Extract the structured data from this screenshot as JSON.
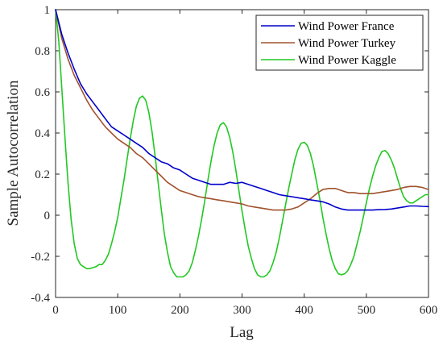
{
  "chart_data": {
    "type": "line",
    "title": "",
    "xlabel": "Lag",
    "ylabel": "Sample Autocorrelation",
    "xlim": [
      0,
      600
    ],
    "ylim": [
      -0.4,
      1
    ],
    "xticks": [
      0,
      100,
      200,
      300,
      400,
      500,
      600
    ],
    "yticks": [
      -0.4,
      -0.2,
      0,
      0.2,
      0.4,
      0.6,
      0.8,
      1
    ],
    "xtick_labels": [
      "0",
      "100",
      "200",
      "300",
      "400",
      "500",
      "600"
    ],
    "ytick_labels": [
      "-0.4",
      "-0.2",
      "0",
      "0.2",
      "0.4",
      "0.6",
      "0.8",
      "1"
    ],
    "grid": false,
    "legend_position": "top-right",
    "series": [
      {
        "name": "Wind Power France",
        "color": "#0000cc",
        "x": [
          0,
          10,
          20,
          30,
          40,
          50,
          60,
          70,
          80,
          90,
          100,
          110,
          120,
          130,
          140,
          150,
          160,
          170,
          180,
          190,
          200,
          210,
          220,
          230,
          240,
          250,
          260,
          270,
          280,
          290,
          300,
          310,
          320,
          330,
          340,
          350,
          360,
          370,
          380,
          390,
          400,
          410,
          420,
          430,
          440,
          450,
          460,
          470,
          480,
          490,
          500,
          510,
          520,
          530,
          540,
          550,
          560,
          570,
          580,
          590,
          600
        ],
        "values": [
          1.0,
          0.88,
          0.79,
          0.71,
          0.64,
          0.59,
          0.55,
          0.51,
          0.47,
          0.43,
          0.41,
          0.39,
          0.37,
          0.35,
          0.33,
          0.3,
          0.28,
          0.26,
          0.25,
          0.23,
          0.22,
          0.2,
          0.18,
          0.17,
          0.16,
          0.15,
          0.15,
          0.15,
          0.16,
          0.155,
          0.16,
          0.15,
          0.14,
          0.13,
          0.12,
          0.11,
          0.1,
          0.095,
          0.09,
          0.085,
          0.08,
          0.075,
          0.07,
          0.065,
          0.055,
          0.04,
          0.03,
          0.025,
          0.025,
          0.025,
          0.025,
          0.025,
          0.027,
          0.028,
          0.03,
          0.035,
          0.04,
          0.045,
          0.045,
          0.043,
          0.042
        ]
      },
      {
        "name": "Wind Power Turkey",
        "color": "#a0522d",
        "x": [
          0,
          10,
          20,
          30,
          40,
          50,
          60,
          70,
          80,
          90,
          100,
          110,
          120,
          130,
          140,
          150,
          160,
          170,
          180,
          190,
          200,
          210,
          220,
          230,
          240,
          250,
          260,
          270,
          280,
          290,
          300,
          310,
          320,
          330,
          340,
          350,
          360,
          370,
          380,
          390,
          400,
          410,
          420,
          430,
          440,
          450,
          460,
          470,
          480,
          490,
          500,
          510,
          520,
          530,
          540,
          550,
          560,
          570,
          580,
          590,
          600
        ],
        "values": [
          1.0,
          0.86,
          0.76,
          0.68,
          0.62,
          0.56,
          0.51,
          0.47,
          0.43,
          0.4,
          0.37,
          0.35,
          0.33,
          0.3,
          0.28,
          0.25,
          0.22,
          0.19,
          0.16,
          0.14,
          0.12,
          0.11,
          0.1,
          0.09,
          0.085,
          0.08,
          0.075,
          0.07,
          0.065,
          0.06,
          0.055,
          0.045,
          0.04,
          0.035,
          0.03,
          0.025,
          0.025,
          0.025,
          0.03,
          0.04,
          0.06,
          0.08,
          0.105,
          0.125,
          0.13,
          0.13,
          0.12,
          0.11,
          0.11,
          0.105,
          0.105,
          0.105,
          0.11,
          0.115,
          0.12,
          0.125,
          0.135,
          0.14,
          0.14,
          0.135,
          0.125
        ]
      },
      {
        "name": "Wind Power Kaggle",
        "color": "#22c822",
        "x": [
          0,
          5,
          10,
          15,
          20,
          25,
          30,
          35,
          40,
          45,
          50,
          55,
          60,
          65,
          70,
          75,
          80,
          85,
          90,
          95,
          100,
          105,
          110,
          115,
          120,
          125,
          130,
          135,
          140,
          145,
          150,
          155,
          160,
          165,
          170,
          175,
          180,
          185,
          190,
          195,
          200,
          205,
          210,
          215,
          220,
          225,
          230,
          235,
          240,
          245,
          250,
          255,
          260,
          265,
          270,
          275,
          280,
          285,
          290,
          295,
          300,
          305,
          310,
          315,
          320,
          325,
          330,
          335,
          340,
          345,
          350,
          355,
          360,
          365,
          370,
          375,
          380,
          385,
          390,
          395,
          400,
          405,
          410,
          415,
          420,
          425,
          430,
          435,
          440,
          445,
          450,
          455,
          460,
          465,
          470,
          475,
          480,
          485,
          490,
          495,
          500,
          505,
          510,
          515,
          520,
          525,
          530,
          535,
          540,
          545,
          550,
          555,
          560,
          565,
          570,
          575,
          580,
          585,
          590,
          595,
          600
        ],
        "values": [
          1.0,
          0.85,
          0.62,
          0.38,
          0.16,
          -0.02,
          -0.14,
          -0.21,
          -0.24,
          -0.25,
          -0.26,
          -0.26,
          -0.255,
          -0.25,
          -0.24,
          -0.24,
          -0.22,
          -0.19,
          -0.14,
          -0.08,
          -0.01,
          0.08,
          0.17,
          0.27,
          0.37,
          0.46,
          0.53,
          0.57,
          0.58,
          0.56,
          0.5,
          0.41,
          0.29,
          0.16,
          0.03,
          -0.09,
          -0.18,
          -0.25,
          -0.28,
          -0.3,
          -0.3,
          -0.3,
          -0.29,
          -0.27,
          -0.23,
          -0.17,
          -0.1,
          -0.02,
          0.07,
          0.17,
          0.26,
          0.34,
          0.4,
          0.44,
          0.45,
          0.43,
          0.38,
          0.31,
          0.22,
          0.12,
          0.02,
          -0.07,
          -0.15,
          -0.21,
          -0.26,
          -0.29,
          -0.3,
          -0.3,
          -0.29,
          -0.27,
          -0.23,
          -0.18,
          -0.11,
          -0.03,
          0.05,
          0.13,
          0.2,
          0.27,
          0.32,
          0.35,
          0.355,
          0.34,
          0.3,
          0.24,
          0.16,
          0.08,
          -0.01,
          -0.09,
          -0.16,
          -0.22,
          -0.26,
          -0.285,
          -0.29,
          -0.285,
          -0.27,
          -0.24,
          -0.2,
          -0.14,
          -0.08,
          -0.01,
          0.06,
          0.13,
          0.19,
          0.24,
          0.28,
          0.31,
          0.315,
          0.3,
          0.27,
          0.23,
          0.18,
          0.13,
          0.09,
          0.07,
          0.06,
          0.06,
          0.07,
          0.08,
          0.09,
          0.1,
          0.1
        ]
      }
    ]
  }
}
